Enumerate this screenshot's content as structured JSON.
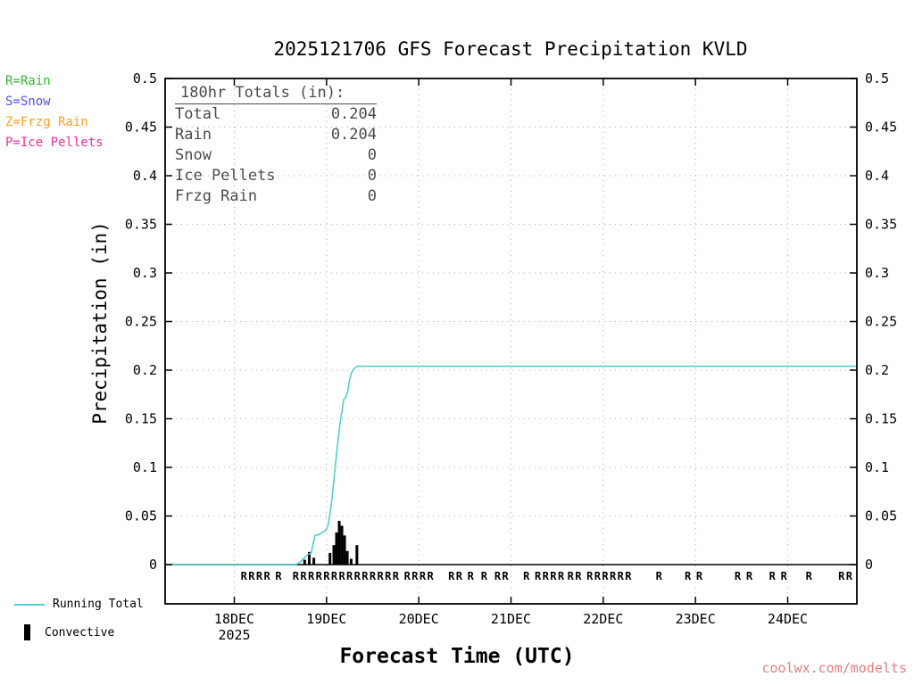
{
  "title": "2025121706 GFS Forecast Precipitation KVLD",
  "x_axis_label": "Forecast Time (UTC)",
  "y_axis_label": "Precipitation (in)",
  "watermark": {
    "text": "coolwx.com/modelts",
    "color": "#e87e7e"
  },
  "type_legend": [
    {
      "label": "R=Rain",
      "color": "#2eb82e"
    },
    {
      "label": "S=Snow",
      "color": "#5050ff"
    },
    {
      "label": "Z=Frzg Rain",
      "color": "#ffa020"
    },
    {
      "label": "P=Ice Pellets",
      "color": "#f03399"
    }
  ],
  "totals_box": {
    "header": "180hr Totals (in):",
    "rows": [
      {
        "label": "Total",
        "value": "0.204"
      },
      {
        "label": "Rain",
        "value": "0.204"
      },
      {
        "label": "Snow",
        "value": "0"
      },
      {
        "label": "Ice Pellets",
        "value": "0"
      },
      {
        "label": "Frzg Rain",
        "value": "0"
      }
    ]
  },
  "series_legend": [
    {
      "label": "Running Total",
      "color": "#52cfcf",
      "style": "line"
    },
    {
      "label": "Convective",
      "color": "#000000",
      "style": "bar"
    }
  ],
  "chart_data": {
    "type": "line+bar",
    "title": "2025121706 GFS Forecast Precipitation KVLD",
    "xlabel": "Forecast Time (UTC)",
    "ylabel": "Precipitation (in)",
    "x_unit": "hours since forecast start (2025-12-17 06 UTC)",
    "x_range": [
      0,
      180
    ],
    "ylim": [
      0,
      0.5
    ],
    "grid": "dotted",
    "y_ticks": [
      {
        "v": 0,
        "label": "0"
      },
      {
        "v": 0.05,
        "label": "0.05"
      },
      {
        "v": 0.1,
        "label": "0.1"
      },
      {
        "v": 0.15,
        "label": "0.15"
      },
      {
        "v": 0.2,
        "label": "0.2"
      },
      {
        "v": 0.25,
        "label": "0.25"
      },
      {
        "v": 0.3,
        "label": "0.3"
      },
      {
        "v": 0.35,
        "label": "0.35"
      },
      {
        "v": 0.4,
        "label": "0.4"
      },
      {
        "v": 0.45,
        "label": "0.45"
      },
      {
        "v": 0.5,
        "label": "0.5"
      }
    ],
    "x_ticks": [
      {
        "hour": 18,
        "label": "18DEC",
        "sub": "2025"
      },
      {
        "hour": 42,
        "label": "19DEC"
      },
      {
        "hour": 66,
        "label": "20DEC"
      },
      {
        "hour": 90,
        "label": "21DEC"
      },
      {
        "hour": 114,
        "label": "22DEC"
      },
      {
        "hour": 138,
        "label": "23DEC"
      },
      {
        "hour": 162,
        "label": "24DEC"
      }
    ],
    "series": [
      {
        "name": "Running Total",
        "type": "line",
        "color": "#52cfcf",
        "points": [
          [
            0,
            0
          ],
          [
            34,
            0
          ],
          [
            35,
            0.002
          ],
          [
            36,
            0.006
          ],
          [
            37,
            0.01
          ],
          [
            38,
            0.012
          ],
          [
            39,
            0.03
          ],
          [
            40,
            0.031
          ],
          [
            41,
            0.033
          ],
          [
            42,
            0.036
          ],
          [
            42.5,
            0.042
          ],
          [
            43,
            0.055
          ],
          [
            43.5,
            0.07
          ],
          [
            44,
            0.09
          ],
          [
            44.5,
            0.11
          ],
          [
            45,
            0.128
          ],
          [
            45.5,
            0.145
          ],
          [
            46,
            0.158
          ],
          [
            46.5,
            0.17
          ],
          [
            47,
            0.172
          ],
          [
            47.5,
            0.178
          ],
          [
            48,
            0.19
          ],
          [
            48.5,
            0.197
          ],
          [
            49,
            0.201
          ],
          [
            50,
            0.204
          ],
          [
            180,
            0.204
          ]
        ]
      },
      {
        "name": "Convective",
        "type": "bar",
        "color": "#000000",
        "points": [
          [
            36.3,
            0.005
          ],
          [
            37.5,
            0.013
          ],
          [
            38.7,
            0.007
          ],
          [
            42.9,
            0.012
          ],
          [
            43.9,
            0.02
          ],
          [
            44.6,
            0.033
          ],
          [
            45.3,
            0.045
          ],
          [
            46.0,
            0.04
          ],
          [
            46.7,
            0.03
          ],
          [
            47.4,
            0.014
          ],
          [
            48.4,
            0.006
          ],
          [
            49.9,
            0.02
          ]
        ]
      }
    ],
    "precip_type_markers": {
      "symbol": "R",
      "color": "#2eb82e",
      "hours": [
        20.5,
        22.5,
        24.5,
        26.5,
        29.5,
        34,
        36,
        38,
        40,
        42,
        44,
        46,
        48,
        50,
        52,
        54,
        56,
        58,
        60,
        63,
        65,
        67,
        69,
        74.5,
        76.5,
        79.5,
        83,
        86.5,
        88.5,
        94,
        97,
        99,
        101,
        103,
        105.5,
        107.5,
        110.5,
        112.5,
        114.5,
        116.5,
        118.5,
        120.5,
        128.5,
        136,
        139,
        149,
        152,
        158,
        161,
        167.5,
        176,
        178
      ]
    }
  }
}
